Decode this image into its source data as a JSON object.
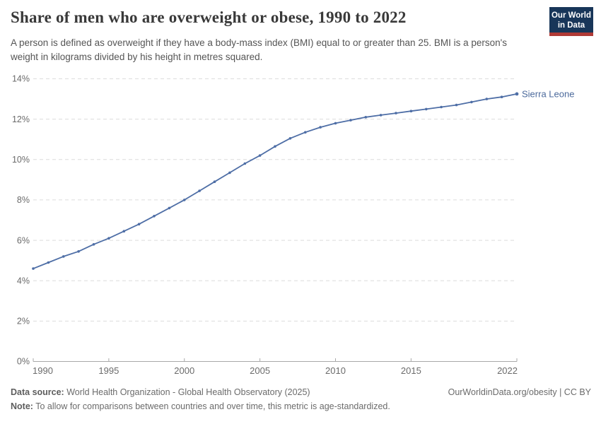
{
  "header": {
    "title": "Share of men who are overweight or obese, 1990 to 2022",
    "subtitle": "A person is defined as overweight if they have a body-mass index (BMI) equal to or greater than 25. BMI is a person's weight in kilograms divided by his height in metres squared.",
    "logo": {
      "line1": "Our World",
      "line2": "in Data"
    }
  },
  "chart_data": {
    "type": "line",
    "title": "Share of men who are overweight or obese, 1990 to 2022",
    "entity_label": "Sierra Leone",
    "x": [
      1990,
      1991,
      1992,
      1993,
      1994,
      1995,
      1996,
      1997,
      1998,
      1999,
      2000,
      2001,
      2002,
      2003,
      2004,
      2005,
      2006,
      2007,
      2008,
      2009,
      2010,
      2011,
      2012,
      2013,
      2014,
      2015,
      2016,
      2017,
      2018,
      2019,
      2020,
      2021,
      2022
    ],
    "series": [
      {
        "name": "Sierra Leone",
        "values": [
          4.6,
          4.9,
          5.2,
          5.45,
          5.8,
          6.1,
          6.45,
          6.8,
          7.2,
          7.6,
          8.0,
          8.45,
          8.9,
          9.35,
          9.8,
          10.2,
          10.65,
          11.05,
          11.35,
          11.6,
          11.8,
          11.95,
          12.1,
          12.2,
          12.3,
          12.4,
          12.5,
          12.6,
          12.7,
          12.85,
          13.0,
          13.1,
          13.25
        ]
      }
    ],
    "xlabel": "",
    "ylabel": "",
    "xlim": [
      1990,
      2022
    ],
    "ylim": [
      0,
      14
    ],
    "yticks": [
      0,
      2,
      4,
      6,
      8,
      10,
      12,
      14
    ],
    "ytick_labels": [
      "0%",
      "2%",
      "4%",
      "6%",
      "8%",
      "10%",
      "12%",
      "14%"
    ],
    "xticks": [
      1990,
      1995,
      2000,
      2005,
      2010,
      2015,
      2022
    ],
    "xtick_labels": [
      "1990",
      "1995",
      "2000",
      "2005",
      "2010",
      "2015",
      "2022"
    ],
    "grid": "horizontal-dashed",
    "legend_position": "end-of-line",
    "colors": {
      "line": "#4e6ea6",
      "entity_label": "#4c6a9c",
      "gridline": "#dcdcdc",
      "axis": "#a8a8a8",
      "tick_text": "#6b6b6b"
    }
  },
  "footer": {
    "source_label": "Data source:",
    "source_text": "World Health Organization - Global Health Observatory (2025)",
    "note_label": "Note:",
    "note_text": "To allow for comparisons between countries and over time, this metric is age-standardized.",
    "link": "OurWorldinData.org/obesity | CC BY"
  }
}
